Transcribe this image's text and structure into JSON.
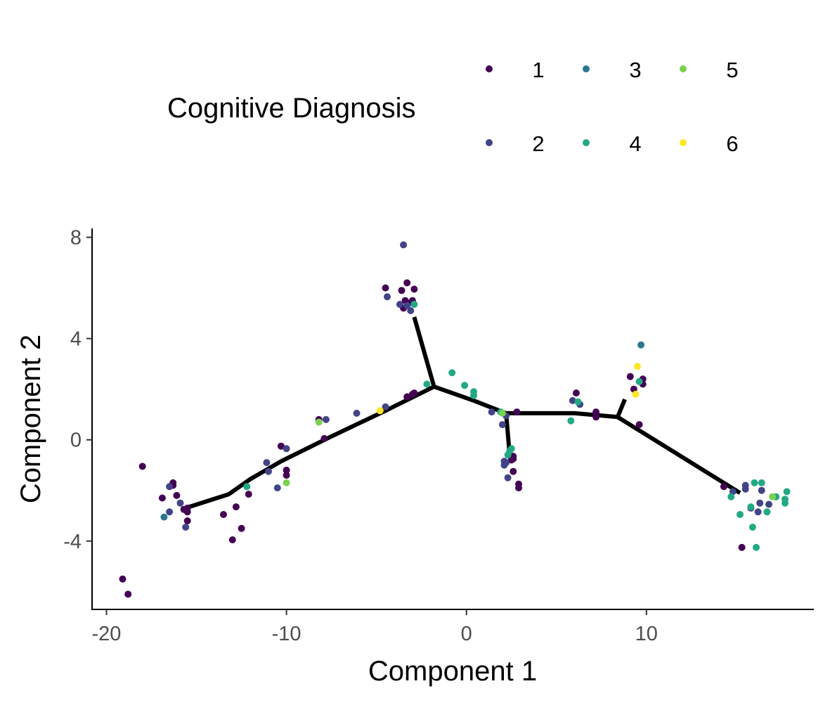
{
  "chart_data": {
    "type": "scatter",
    "xlabel": "Component 1",
    "ylabel": "Component 2",
    "xlim": [
      -20.8,
      19.3
    ],
    "ylim": [
      -6.7,
      8.35
    ],
    "xticks": [
      -20,
      -10,
      0,
      10
    ],
    "xtick_labels": [
      "-20",
      "-10",
      "0",
      "10"
    ],
    "yticks": [
      -4,
      0,
      4,
      8
    ],
    "ytick_labels": [
      "-4",
      "0",
      "4",
      "8"
    ],
    "grid": false,
    "legend": {
      "title": "Cognitive Diagnosis",
      "position": "top",
      "entries": [
        {
          "label": "1",
          "color": "#440154"
        },
        {
          "label": "2",
          "color": "#414487"
        },
        {
          "label": "3",
          "color": "#2A788E"
        },
        {
          "label": "4",
          "color": "#22A884"
        },
        {
          "label": "5",
          "color": "#7AD151"
        },
        {
          "label": "6",
          "color": "#FDE725"
        }
      ]
    },
    "trajectory": [
      [
        [
          -15.4,
          -2.65
        ],
        [
          -13.2,
          -2.15
        ],
        [
          -12.0,
          -1.55
        ],
        [
          -10.3,
          -0.85
        ],
        [
          -7.6,
          0.1
        ],
        [
          -4.5,
          1.15
        ],
        [
          -1.8,
          2.1
        ]
      ],
      [
        [
          -1.8,
          2.1
        ],
        [
          -2.9,
          4.85
        ]
      ],
      [
        [
          -1.8,
          2.1
        ],
        [
          0.4,
          1.55
        ],
        [
          2.2,
          1.05
        ],
        [
          6.0,
          1.05
        ],
        [
          8.4,
          0.9
        ]
      ],
      [
        [
          2.2,
          1.05
        ],
        [
          2.4,
          -0.6
        ]
      ],
      [
        [
          8.4,
          0.9
        ],
        [
          8.8,
          1.6
        ]
      ],
      [
        [
          8.4,
          0.9
        ],
        [
          15.2,
          -2.1
        ]
      ]
    ],
    "series": [
      {
        "name": "1",
        "color": "#440154",
        "points": [
          [
            -18.0,
            -1.05
          ],
          [
            -19.1,
            -5.5
          ],
          [
            -18.8,
            -6.1
          ],
          [
            -16.9,
            -2.3
          ],
          [
            -16.3,
            -1.7
          ],
          [
            -16.3,
            -1.8
          ],
          [
            -16.1,
            -2.2
          ],
          [
            -15.7,
            -2.75
          ],
          [
            -15.5,
            -2.85
          ],
          [
            -15.5,
            -3.2
          ],
          [
            -15.5,
            -2.7
          ],
          [
            -13.5,
            -2.95
          ],
          [
            -12.8,
            -2.65
          ],
          [
            -13.0,
            -3.95
          ],
          [
            -12.5,
            -3.5
          ],
          [
            -12.1,
            -2.15
          ],
          [
            -10.3,
            -0.25
          ],
          [
            -10.0,
            -1.4
          ],
          [
            -10.0,
            -1.2
          ],
          [
            -8.2,
            0.8
          ],
          [
            -7.9,
            0.05
          ],
          [
            -4.5,
            6.0
          ],
          [
            -3.6,
            5.9
          ],
          [
            -3.3,
            6.2
          ],
          [
            -3.4,
            5.5
          ],
          [
            -3.2,
            5.4
          ],
          [
            -3.0,
            5.5
          ],
          [
            -2.9,
            5.95
          ],
          [
            -3.5,
            5.2
          ],
          [
            -3.3,
            1.7
          ],
          [
            -3.0,
            1.8
          ],
          [
            -2.9,
            1.85
          ],
          [
            6.1,
            1.85
          ],
          [
            7.2,
            1.1
          ],
          [
            7.2,
            0.95
          ],
          [
            7.2,
            0.9
          ],
          [
            9.1,
            2.5
          ],
          [
            9.3,
            2.0
          ],
          [
            9.8,
            2.4
          ],
          [
            9.8,
            2.2
          ],
          [
            9.6,
            0.6
          ],
          [
            2.8,
            1.1
          ],
          [
            2.4,
            -0.6
          ],
          [
            2.6,
            -0.65
          ],
          [
            2.6,
            -0.75
          ],
          [
            2.5,
            -0.8
          ],
          [
            2.9,
            -1.75
          ],
          [
            2.9,
            -1.9
          ],
          [
            2.6,
            -1.25
          ],
          [
            14.3,
            -1.85
          ],
          [
            15.3,
            -4.25
          ]
        ]
      },
      {
        "name": "2",
        "color": "#414487",
        "points": [
          [
            -16.5,
            -1.85
          ],
          [
            -16.5,
            -2.85
          ],
          [
            -15.9,
            -2.5
          ],
          [
            -15.6,
            -3.45
          ],
          [
            -11.1,
            -0.9
          ],
          [
            -11.0,
            -1.25
          ],
          [
            -10.5,
            -1.9
          ],
          [
            -10.0,
            -0.35
          ],
          [
            -7.8,
            0.8
          ],
          [
            -6.1,
            1.05
          ],
          [
            -4.4,
            5.65
          ],
          [
            -3.7,
            5.35
          ],
          [
            -3.5,
            7.7
          ],
          [
            -3.3,
            5.3
          ],
          [
            -3.1,
            5.1
          ],
          [
            -4.5,
            1.3
          ],
          [
            1.4,
            1.1
          ],
          [
            2.0,
            0.6
          ],
          [
            2.2,
            0.95
          ],
          [
            2.1,
            -0.85
          ],
          [
            2.1,
            -1.0
          ],
          [
            2.3,
            -1.5
          ],
          [
            2.2,
            -0.9
          ],
          [
            5.9,
            1.55
          ],
          [
            6.3,
            1.4
          ],
          [
            14.8,
            -2.05
          ],
          [
            15.5,
            -1.8
          ],
          [
            15.5,
            -1.95
          ],
          [
            15.8,
            -2.7
          ],
          [
            16.2,
            -2.85
          ],
          [
            16.3,
            -2.5
          ],
          [
            16.4,
            -2.0
          ],
          [
            16.8,
            -2.55
          ]
        ]
      },
      {
        "name": "3",
        "color": "#2A788E",
        "points": [
          [
            -16.8,
            -3.05
          ],
          [
            9.7,
            3.75
          ]
        ]
      },
      {
        "name": "4",
        "color": "#22A884",
        "points": [
          [
            -12.2,
            -1.85
          ],
          [
            -2.9,
            5.35
          ],
          [
            -2.2,
            2.2
          ],
          [
            -0.8,
            2.65
          ],
          [
            -0.1,
            2.15
          ],
          [
            0.4,
            1.9
          ],
          [
            0.4,
            1.75
          ],
          [
            1.9,
            1.1
          ],
          [
            2.3,
            -0.6
          ],
          [
            2.4,
            -0.45
          ],
          [
            2.5,
            -0.35
          ],
          [
            6.2,
            1.5
          ],
          [
            5.8,
            0.75
          ],
          [
            9.6,
            2.3
          ],
          [
            14.7,
            -2.25
          ],
          [
            15.2,
            -2.95
          ],
          [
            15.8,
            -2.65
          ],
          [
            15.9,
            -3.45
          ],
          [
            16.1,
            -4.25
          ],
          [
            16.0,
            -1.7
          ],
          [
            16.4,
            -1.7
          ],
          [
            16.7,
            -2.85
          ],
          [
            17.2,
            -2.25
          ],
          [
            17.7,
            -2.5
          ],
          [
            17.7,
            -2.35
          ],
          [
            17.8,
            -2.05
          ]
        ]
      },
      {
        "name": "5",
        "color": "#7AD151",
        "points": [
          [
            -8.2,
            0.7
          ],
          [
            -10.0,
            -1.7
          ],
          [
            2.0,
            1.05
          ],
          [
            17.0,
            -2.25
          ]
        ]
      },
      {
        "name": "6",
        "color": "#FDE725",
        "points": [
          [
            -4.8,
            1.15
          ],
          [
            9.4,
            1.8
          ],
          [
            9.5,
            2.9
          ]
        ]
      }
    ]
  }
}
